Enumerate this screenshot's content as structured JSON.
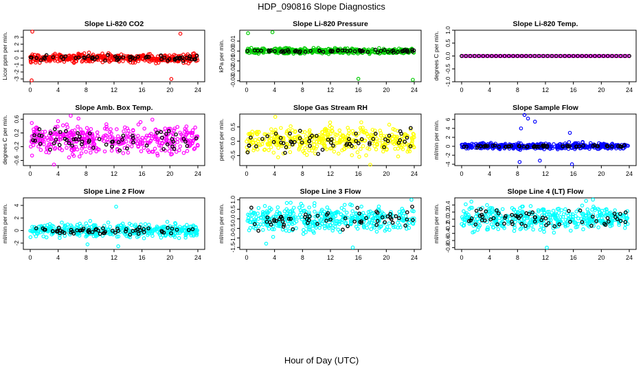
{
  "page": {
    "title": "HDP_090816  Slope Diagnostics",
    "x_title": "Hour of Day (UTC)"
  },
  "chart_data": [
    {
      "type": "scatter",
      "title": "Slope Li-820 CO2",
      "ylabel": "Licor ppm per min.",
      "color": "#ff0000",
      "xlim": [
        0,
        24
      ],
      "ylim": [
        -3.4,
        4.0
      ],
      "yticks": [
        -3,
        -2,
        -1,
        0,
        1,
        2,
        3
      ],
      "ytick_labels": [
        "-3",
        "-2",
        "-1",
        "0",
        "1",
        "2",
        "3"
      ],
      "xticks": [
        0,
        4,
        8,
        12,
        16,
        20,
        24
      ],
      "band": [
        -0.7,
        0.7
      ],
      "outliers": [
        [
          0.3,
          3.8
        ],
        [
          0.2,
          -3.2
        ],
        [
          21.5,
          3.5
        ],
        [
          20.2,
          -3.0
        ]
      ],
      "black_band": [
        -0.5,
        0.5
      ]
    },
    {
      "type": "scatter",
      "title": "Slope Li-820 Pressure",
      "ylabel": "kPa per min.",
      "color": "#00cc00",
      "xlim": [
        0,
        24
      ],
      "ylim": [
        -0.031,
        0.021
      ],
      "yticks": [
        -0.03,
        -0.02,
        -0.01,
        0,
        0.01
      ],
      "ytick_labels": [
        "-0.03",
        "-0.02",
        "-0.01",
        "0.00",
        "0.01"
      ],
      "xticks": [
        0,
        4,
        8,
        12,
        16,
        20,
        24
      ],
      "band": [
        -0.003,
        0.003
      ],
      "outliers": [
        [
          0.2,
          0.018
        ],
        [
          16.0,
          -0.028
        ],
        [
          23.8,
          -0.029
        ],
        [
          3.7,
          0.019
        ]
      ],
      "black_band": [
        -0.002,
        0.002
      ]
    },
    {
      "type": "scatter",
      "title": "Slope Li-820 Temp.",
      "ylabel": "degrees C per min.",
      "color": "#ff00ff",
      "xlim": [
        0,
        24
      ],
      "ylim": [
        -1.0,
        1.0
      ],
      "yticks": [
        -1.0,
        -0.5,
        0,
        0.5,
        1.0
      ],
      "ytick_labels": [
        "-1.0",
        "-0.5",
        "0.0",
        "0.5",
        "1.0"
      ],
      "xticks": [
        0,
        4,
        8,
        12,
        16,
        20,
        24
      ],
      "band": [
        -0.01,
        0.01
      ],
      "outliers": [],
      "black_band": [
        -0.01,
        0.01
      ]
    },
    {
      "type": "scatter",
      "title": "Slope Amb. Box Temp.",
      "ylabel": "degrees C per min.",
      "color": "#ff00ff",
      "xlim": [
        0,
        24
      ],
      "ylim": [
        -0.75,
        0.75
      ],
      "yticks": [
        -0.6,
        -0.2,
        0.2,
        0.6
      ],
      "ytick_labels": [
        "-0.6",
        "-0.2",
        "0.2",
        "0.6"
      ],
      "xticks": [
        0,
        4,
        8,
        12,
        16,
        20,
        24
      ],
      "band": [
        -0.45,
        0.5
      ],
      "outliers": [
        [
          5.8,
          0.7
        ],
        [
          3.4,
          -0.72
        ]
      ],
      "black_band": [
        -0.4,
        0.4
      ]
    },
    {
      "type": "scatter",
      "title": "Slope Gas Stream RH",
      "ylabel": "percent per min.",
      "color": "#ffff00",
      "xlim": [
        0,
        24
      ],
      "ylim": [
        -0.85,
        0.95
      ],
      "yticks": [
        -0.5,
        0,
        0.5
      ],
      "ytick_labels": [
        "-0.5",
        "0.0",
        "0.5"
      ],
      "xticks": [
        0,
        4,
        8,
        12,
        16,
        20,
        24
      ],
      "band": [
        -0.5,
        0.55
      ],
      "outliers": [
        [
          4.1,
          0.85
        ],
        [
          17.7,
          -0.82
        ]
      ],
      "black_band": [
        -0.5,
        0.5
      ]
    },
    {
      "type": "scatter",
      "title": "Slope Sample Flow",
      "ylabel": "ml/min per min.",
      "color": "#0000ff",
      "xlim": [
        0,
        24
      ],
      "ylim": [
        -4.3,
        7.2
      ],
      "yticks": [
        -4,
        -2,
        0,
        2,
        4,
        6
      ],
      "ytick_labels": [
        "-4",
        "-2",
        "0",
        "2",
        "4",
        "6"
      ],
      "xticks": [
        0,
        4,
        8,
        12,
        16,
        20,
        24
      ],
      "band": [
        -0.7,
        0.8
      ],
      "outliers": [
        [
          9.0,
          7.0
        ],
        [
          9.5,
          6.2
        ],
        [
          8.5,
          4.0
        ],
        [
          10.5,
          5.5
        ],
        [
          15.5,
          3.0
        ],
        [
          15.8,
          -4.0
        ],
        [
          8.3,
          -3.5
        ],
        [
          11.2,
          -3.2
        ]
      ],
      "black_band": [
        -0.3,
        0.3
      ]
    },
    {
      "type": "scatter",
      "title": "Slope Line 2 Flow",
      "ylabel": "ml/min per min.",
      "color": "#00ffff",
      "xlim": [
        0,
        24
      ],
      "ylim": [
        -3.0,
        5.2
      ],
      "yticks": [
        -2,
        0,
        2,
        4
      ],
      "ytick_labels": [
        "-2",
        "0",
        "2",
        "4"
      ],
      "xticks": [
        0,
        4,
        8,
        12,
        16,
        20,
        24
      ],
      "band": [
        -1.2,
        1.2
      ],
      "outliers": [
        [
          12.3,
          3.8
        ],
        [
          12.6,
          -2.5
        ],
        [
          8.2,
          -2.2
        ]
      ],
      "black_band": [
        -0.6,
        0.6
      ]
    },
    {
      "type": "scatter",
      "title": "Slope Line 3 Flow",
      "ylabel": "ml/min per min.",
      "color": "#00ffff",
      "xlim": [
        0,
        24
      ],
      "ylim": [
        -1.6,
        1.1
      ],
      "yticks": [
        -1.5,
        -1.0,
        -0.5,
        0,
        0.5,
        1.0
      ],
      "ytick_labels": [
        "-1.5",
        "-1.0",
        "-0.5",
        "0.0",
        "0.5",
        "1.0"
      ],
      "xticks": [
        0,
        4,
        8,
        12,
        16,
        20,
        24
      ],
      "band": [
        -0.8,
        0.8
      ],
      "outliers": [
        [
          23.6,
          1.0
        ],
        [
          15.2,
          -1.5
        ],
        [
          2.8,
          -1.3
        ]
      ],
      "black_band": [
        -0.7,
        0.7
      ]
    },
    {
      "type": "scatter",
      "title": "Slope Line 4 (LT) Flow",
      "ylabel": "ml/min per min.",
      "color": "#00ffff",
      "xlim": [
        0,
        24
      ],
      "ylim": [
        -0.85,
        0.6
      ],
      "yticks": [
        -0.8,
        -0.6,
        -0.4,
        -0.2,
        0,
        0.2,
        0.4
      ],
      "ytick_labels": [
        "-0.8",
        "-0.6",
        "-0.4",
        "-0.2",
        "0.0",
        "0.2",
        "0.4"
      ],
      "xticks": [
        0,
        4,
        8,
        12,
        16,
        20,
        24
      ],
      "band": [
        -0.35,
        0.4
      ],
      "outliers": [
        [
          12.2,
          -0.8
        ],
        [
          18.8,
          0.55
        ]
      ],
      "black_band": [
        -0.3,
        0.35
      ]
    }
  ]
}
